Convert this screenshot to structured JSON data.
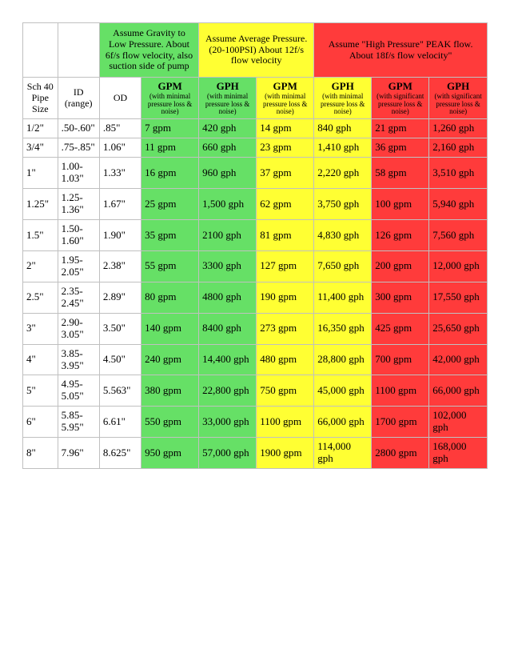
{
  "colors": {
    "green": "#66e066",
    "yellow": "#ffff33",
    "red": "#ff3b3b",
    "border": "#c0c0c0",
    "background": "#ffffff"
  },
  "header_descriptions": {
    "green": "Assume Gravity to Low Pressure. About 6f/s flow velocity, also suction side of pump",
    "yellow": "Assume Average Pressure. (20-100PSI) About 12f/s flow velocity",
    "red": "Assume \"High Pressure\" PEAK flow. About 18f/s flow velocity\""
  },
  "column_headers": {
    "sch": "Sch 40 Pipe Size",
    "id": "ID (range)",
    "od": "OD",
    "gpm_low": {
      "main": "GPM",
      "sub": "(with minimal pressure loss & noise)"
    },
    "gph_low": {
      "main": "GPH",
      "sub": "(with minimal pressure loss & noise)"
    },
    "gpm_avg": {
      "main": "GPM",
      "sub": "(with minimal pressure loss & noise)"
    },
    "gph_avg": {
      "main": "GPH",
      "sub": "(with minimal pressure loss & noise)"
    },
    "gpm_high": {
      "main": "GPM",
      "sub": "(with significant pressure loss & noise)"
    },
    "gph_high": {
      "main": "GPH",
      "sub": "(with significant pressure loss & noise)"
    }
  },
  "rows": [
    {
      "sch": "1/2\"",
      "id": ".50-.60\"",
      "od": ".85\"",
      "gpm_low": "7 gpm",
      "gph_low": "420 gph",
      "gpm_avg": "14 gpm",
      "gph_avg": "840 gph",
      "gpm_high": "21 gpm",
      "gph_high": "1,260 gph"
    },
    {
      "sch": "3/4\"",
      "id": ".75-.85\"",
      "od": "1.06\"",
      "gpm_low": "11 gpm",
      "gph_low": "660 gph",
      "gpm_avg": "23 gpm",
      "gph_avg": "1,410 gph",
      "gpm_high": "36 gpm",
      "gph_high": "2,160 gph"
    },
    {
      "sch": "1\"",
      "id": "1.00-1.03\"",
      "od": "1.33\"",
      "gpm_low": "16 gpm",
      "gph_low": "960 gph",
      "gpm_avg": "37 gpm",
      "gph_avg": "2,220 gph",
      "gpm_high": "58 gpm",
      "gph_high": "3,510 gph"
    },
    {
      "sch": "1.25\"",
      "id": "1.25-1.36\"",
      "od": "1.67\"",
      "gpm_low": "25 gpm",
      "gph_low": "1,500 gph",
      "gpm_avg": "62 gpm",
      "gph_avg": "3,750 gph",
      "gpm_high": "100 gpm",
      "gph_high": "5,940 gph"
    },
    {
      "sch": "1.5\"",
      "id": "1.50-1.60\"",
      "od": "1.90\"",
      "gpm_low": "35 gpm",
      "gph_low": "2100 gph",
      "gpm_avg": "81 gpm",
      "gph_avg": "4,830 gph",
      "gpm_high": "126 gpm",
      "gph_high": "7,560 gph"
    },
    {
      "sch": "2\"",
      "id": "1.95-2.05\"",
      "od": "2.38\"",
      "gpm_low": "55 gpm",
      "gph_low": "3300 gph",
      "gpm_avg": "127 gpm",
      "gph_avg": "7,650 gph",
      "gpm_high": "200 gpm",
      "gph_high": "12,000 gph"
    },
    {
      "sch": "2.5\"",
      "id": "2.35-2.45\"",
      "od": "2.89\"",
      "gpm_low": "80 gpm",
      "gph_low": "4800 gph",
      "gpm_avg": "190 gpm",
      "gph_avg": "11,400 gph",
      "gpm_high": "300 gpm",
      "gph_high": "17,550 gph"
    },
    {
      "sch": "3\"",
      "id": "2.90-3.05\"",
      "od": "3.50\"",
      "gpm_low": "140 gpm",
      "gph_low": "8400 gph",
      "gpm_avg": "273 gpm",
      "gph_avg": "16,350 gph",
      "gpm_high": "425 gpm",
      "gph_high": "25,650 gph"
    },
    {
      "sch": "4\"",
      "id": "3.85-3.95\"",
      "od": "4.50\"",
      "gpm_low": "240 gpm",
      "gph_low": "14,400 gph",
      "gpm_avg": "480 gpm",
      "gph_avg": "28,800 gph",
      "gpm_high": "700 gpm",
      "gph_high": "42,000 gph"
    },
    {
      "sch": "5\"",
      "id": "4.95-5.05\"",
      "od": "5.563\"",
      "gpm_low": "380 gpm",
      "gph_low": "22,800 gph",
      "gpm_avg": "750 gpm",
      "gph_avg": "45,000 gph",
      "gpm_high": "1100 gpm",
      "gph_high": "66,000 gph"
    },
    {
      "sch": "6\"",
      "id": "5.85-5.95\"",
      "od": "6.61\"",
      "gpm_low": "550 gpm",
      "gph_low": "33,000 gph",
      "gpm_avg": "1100 gpm",
      "gph_avg": "66,000 gph",
      "gpm_high": "1700 gpm",
      "gph_high": "102,000 gph"
    },
    {
      "sch": "8\"",
      "id": "7.96\"",
      "od": "8.625\"",
      "gpm_low": "950 gpm",
      "gph_low": "57,000 gph",
      "gpm_avg": "1900 gpm",
      "gph_avg": "114,000 gph",
      "gpm_high": "2800 gpm",
      "gph_high": "168,000 gph"
    }
  ]
}
